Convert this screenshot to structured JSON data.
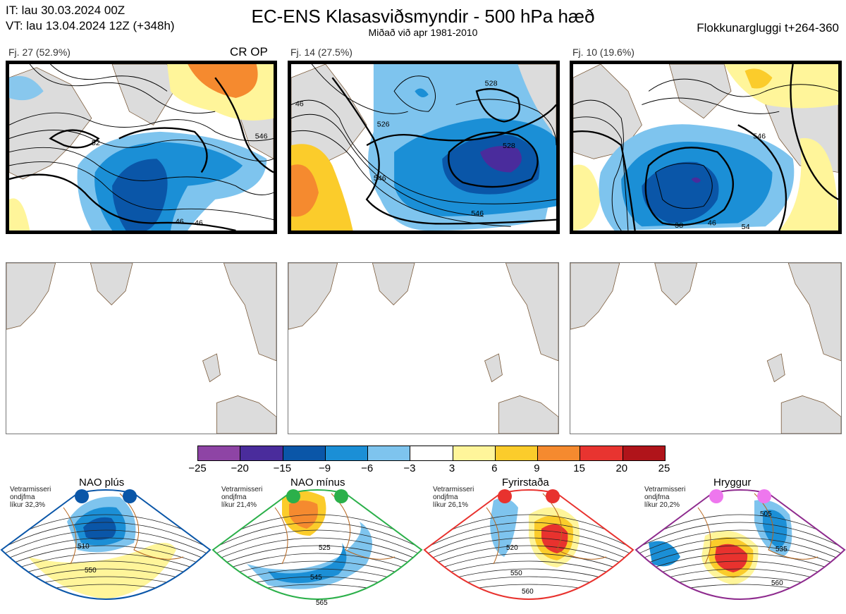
{
  "header": {
    "it_line": "IT: lau 30.03.2024 00Z",
    "vt_line": "VT: lau 13.04.2024 12Z  (+348h)",
    "title": "EC-ENS Klasasviðsmyndir - 500 hPa hæð",
    "subtitle": "Miðað við apr 1981-2010",
    "window": "Flokkunargluggi t+264-360"
  },
  "clusters": [
    {
      "label": "Fj. 27 (52.9%)",
      "tag": "CR OP",
      "border": "#e8322e",
      "contours": [
        "52",
        "46",
        "46",
        "546"
      ]
    },
    {
      "label": "Fj. 14 (27.5%)",
      "tag": "",
      "border": "#2bb04a",
      "contours": [
        "528",
        "526",
        "528",
        "546",
        "546",
        "46"
      ]
    },
    {
      "label": "Fj. 10 (19.6%)",
      "tag": "",
      "border": "#e8322e",
      "contours": [
        "546",
        "46",
        "54",
        "38"
      ]
    }
  ],
  "colorbar": {
    "labels": [
      "−25",
      "−20",
      "−15",
      "−9",
      "−6",
      "−3",
      "3",
      "6",
      "9",
      "15",
      "20",
      "25"
    ],
    "colors": [
      "#8e44a5",
      "#4a2c9c",
      "#0a56a8",
      "#1b8fd6",
      "#7ec4ee",
      "#ffffff",
      "#fff59a",
      "#fbcc2b",
      "#f58a2f",
      "#e83430",
      "#b0141a"
    ]
  },
  "regimes": [
    {
      "title": "NAO plús",
      "info": [
        "Vetrarmisseri",
        "ondjfma",
        "líkur 32,3%"
      ],
      "color": "#0a56a8",
      "dot": "#0a56a8",
      "labels": [
        "510",
        "550"
      ]
    },
    {
      "title": "NAO mínus",
      "info": [
        "Vetrarmisseri",
        "ondjfma",
        "líkur 21,4%"
      ],
      "color": "#2bb04a",
      "dot": "#2bb04a",
      "labels": [
        "525",
        "545",
        "565"
      ]
    },
    {
      "title": "Fyrirstaða",
      "info": [
        "Vetrarmisseri",
        "ondjfma",
        "líkur 26,1%"
      ],
      "color": "#e8322e",
      "dot": "#e8322e",
      "labels": [
        "520",
        "550",
        "560"
      ]
    },
    {
      "title": "Hryggur",
      "info": [
        "Vetrarmisseri",
        "ondjfma",
        "líkur 20,2%"
      ],
      "color": "#8e2b8e",
      "dot": "#ee77ee",
      "labels": [
        "505",
        "535",
        "560"
      ]
    }
  ],
  "colors": {
    "land": "#dcdcdc",
    "coast": "#7a5a3a",
    "contour": "#000000"
  }
}
